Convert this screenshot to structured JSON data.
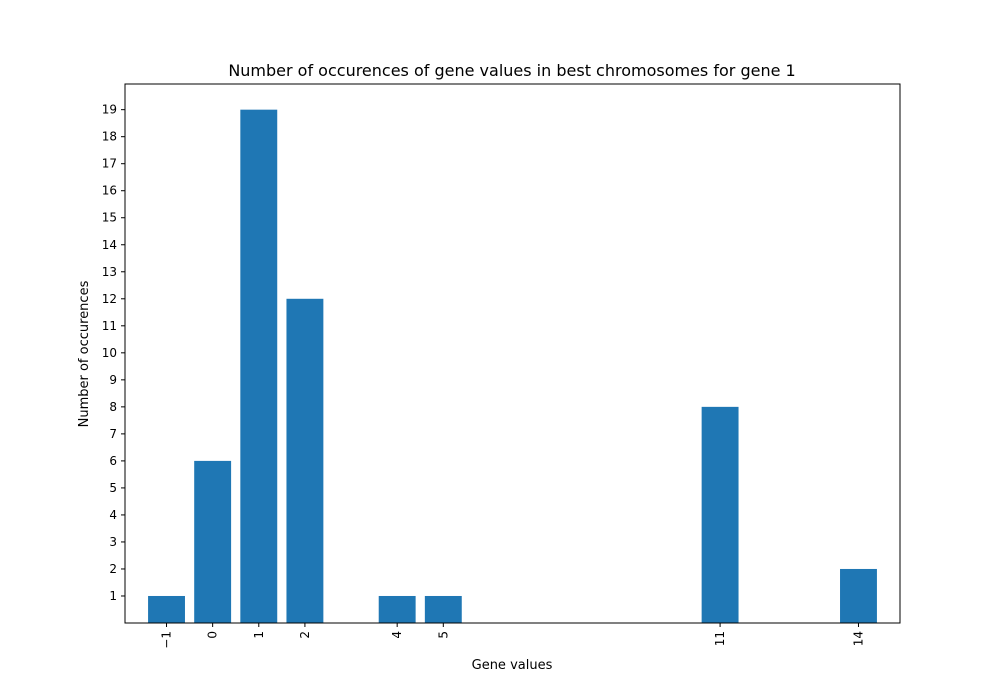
{
  "chart_data": {
    "type": "bar",
    "title": "Number of occurences of gene values in best chromosomes for gene 1",
    "xlabel": "Gene values",
    "ylabel": "Number of occurences",
    "x": [
      -1,
      0,
      1,
      2,
      4,
      5,
      11,
      14
    ],
    "x_tick_labels": [
      "−1",
      "0",
      "1",
      "2",
      "4",
      "5",
      "11",
      "14"
    ],
    "values": [
      1,
      6,
      19,
      12,
      1,
      1,
      8,
      2
    ],
    "xlim": [
      -1.9,
      14.9
    ],
    "ylim": [
      0,
      19.95
    ],
    "y_ticks": [
      1,
      2,
      3,
      4,
      5,
      6,
      7,
      8,
      9,
      10,
      11,
      12,
      13,
      14,
      15,
      16,
      17,
      18,
      19
    ],
    "x_tick_rotation": "vertical",
    "grid": false,
    "legend": "none",
    "bar_color": "#1f77b4"
  }
}
